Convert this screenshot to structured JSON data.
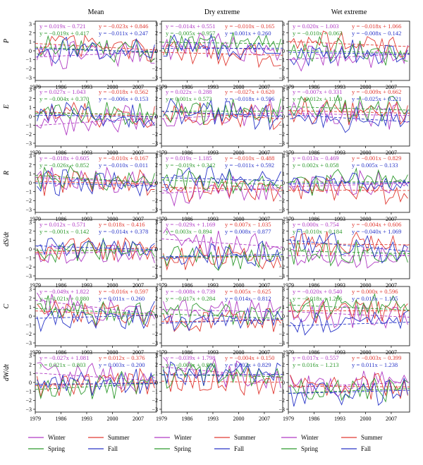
{
  "colors": {
    "Winter": "#b13bc4",
    "Summer": "#e03a33",
    "Spring": "#2f9a2f",
    "Fall": "#2a36c8"
  },
  "columns": [
    "Mean",
    "Dry extreme",
    "Wet extreme"
  ],
  "rows": [
    "P",
    "E",
    "R",
    "dS/dt",
    "C",
    "dW/dt"
  ],
  "x_ticks": [
    "1979",
    "1986",
    "1993",
    "2000",
    "2007"
  ],
  "y_ticks": [
    "3",
    "2",
    "1",
    "0",
    "−1",
    "−2",
    "−3"
  ],
  "legend": [
    "Winter",
    "Summer",
    "Spring",
    "Fall"
  ],
  "chart_data": {
    "type": "line",
    "layout": "6 rows x 3 columns grid of time-series panels",
    "x_range": [
      1979,
      2012
    ],
    "ylim": [
      -3,
      3
    ],
    "series_names": [
      "Winter",
      "Summer",
      "Spring",
      "Fall"
    ],
    "panels": [
      {
        "row": "P",
        "col": "Mean",
        "eq": [
          {
            "series": "Winter",
            "text": "y = 0.019x − 0.721",
            "slope": 0.019,
            "intercept": -0.721
          },
          {
            "series": "Summer",
            "text": "y = −0.023x + 0.846",
            "slope": -0.023,
            "intercept": 0.846
          },
          {
            "series": "Spring",
            "text": "y = −0.019x + 0.417",
            "slope": -0.019,
            "intercept": 0.417
          },
          {
            "series": "Fall",
            "text": "y = −0.011x + 0.247",
            "slope": -0.011,
            "intercept": 0.247
          }
        ]
      },
      {
        "row": "P",
        "col": "Dry extreme",
        "eq": [
          {
            "series": "Winter",
            "text": "y = −0.014x + 0.551",
            "slope": -0.014,
            "intercept": 0.551
          },
          {
            "series": "Summer",
            "text": "y = −0.010x − 0.165",
            "slope": -0.01,
            "intercept": -0.165
          },
          {
            "series": "Spring",
            "text": "y = −0.005x + 0.957",
            "slope": -0.005,
            "intercept": 0.957
          },
          {
            "series": "Fall",
            "text": "y = 0.001x + 0.260",
            "slope": 0.001,
            "intercept": 0.26
          }
        ]
      },
      {
        "row": "P",
        "col": "Wet extreme",
        "eq": [
          {
            "series": "Winter",
            "text": "y = 0.020x − 1.003",
            "slope": 0.02,
            "intercept": -1.003
          },
          {
            "series": "Summer",
            "text": "y = −0.018x + 1.066",
            "slope": -0.018,
            "intercept": 1.066
          },
          {
            "series": "Spring",
            "text": "y = −0.010x + 0.063",
            "slope": -0.01,
            "intercept": 0.063
          },
          {
            "series": "Fall",
            "text": "y = −0.008x − 0.142",
            "slope": -0.008,
            "intercept": -0.142
          }
        ]
      },
      {
        "row": "E",
        "col": "Mean",
        "eq": [
          {
            "series": "Winter",
            "text": "y = 0.027x − 1.043",
            "slope": 0.027,
            "intercept": -1.043
          },
          {
            "series": "Summer",
            "text": "y = −0.018x + 0.562",
            "slope": -0.018,
            "intercept": 0.562
          },
          {
            "series": "Spring",
            "text": "y = −0.004x + 0.370",
            "slope": -0.004,
            "intercept": 0.37
          },
          {
            "series": "Fall",
            "text": "y = −0.006x + 0.153",
            "slope": -0.006,
            "intercept": 0.153
          }
        ]
      },
      {
        "row": "E",
        "col": "Dry extreme",
        "eq": [
          {
            "series": "Winter",
            "text": "y = 0.022x − 0.288",
            "slope": 0.022,
            "intercept": -0.288
          },
          {
            "series": "Summer",
            "text": "y = −0.027x + 0.620",
            "slope": -0.027,
            "intercept": 0.62
          },
          {
            "series": "Spring",
            "text": "y = 0.001x + 0.573",
            "slope": 0.001,
            "intercept": 0.573
          },
          {
            "series": "Fall",
            "text": "y = −0.018x + 0.596",
            "slope": -0.018,
            "intercept": 0.596
          }
        ]
      },
      {
        "row": "E",
        "col": "Wet extreme",
        "eq": [
          {
            "series": "Winter",
            "text": "y = −0.007x + 0.331",
            "slope": -0.007,
            "intercept": 0.331
          },
          {
            "series": "Summer",
            "text": "y = −0.009x + 0.662",
            "slope": -0.009,
            "intercept": 0.662
          },
          {
            "series": "Spring",
            "text": "y = −0.012x + 1.100",
            "slope": -0.012,
            "intercept": 1.1
          },
          {
            "series": "Fall",
            "text": "y = −0.025x + 0.221",
            "slope": -0.025,
            "intercept": 0.221
          }
        ]
      },
      {
        "row": "R",
        "col": "Mean",
        "eq": [
          {
            "series": "Winter",
            "text": "y = −0.018x + 0.605",
            "slope": -0.018,
            "intercept": 0.605
          },
          {
            "series": "Summer",
            "text": "y = −0.010x + 0.167",
            "slope": -0.01,
            "intercept": 0.167
          },
          {
            "series": "Spring",
            "text": "y = −0.026x + 0.852",
            "slope": -0.026,
            "intercept": 0.852
          },
          {
            "series": "Fall",
            "text": "y = −0.010x − 0.011",
            "slope": -0.01,
            "intercept": -0.011
          }
        ]
      },
      {
        "row": "R",
        "col": "Dry extreme",
        "eq": [
          {
            "series": "Winter",
            "text": "y = 0.019x − 1.185",
            "slope": 0.019,
            "intercept": -1.185
          },
          {
            "series": "Summer",
            "text": "y = −0.010x − 0.488",
            "slope": -0.01,
            "intercept": -0.488
          },
          {
            "series": "Spring",
            "text": "y = −0.019x + 0.342",
            "slope": -0.019,
            "intercept": 0.342
          },
          {
            "series": "Fall",
            "text": "y = −0.011x + 0.592",
            "slope": -0.011,
            "intercept": 0.592
          }
        ]
      },
      {
        "row": "R",
        "col": "Wet extreme",
        "eq": [
          {
            "series": "Winter",
            "text": "y = 0.013x − 0.469",
            "slope": 0.013,
            "intercept": -0.469
          },
          {
            "series": "Summer",
            "text": "y = −0.001x − 0.829",
            "slope": -0.001,
            "intercept": -0.829
          },
          {
            "series": "Spring",
            "text": "y = 0.002x + 0.058",
            "slope": 0.002,
            "intercept": 0.058
          },
          {
            "series": "Fall",
            "text": "y = 0.005x − 0.133",
            "slope": 0.005,
            "intercept": -0.133
          }
        ]
      },
      {
        "row": "dS/dt",
        "col": "Mean",
        "eq": [
          {
            "series": "Winter",
            "text": "y = 0.012x − 0.571",
            "slope": 0.012,
            "intercept": -0.571
          },
          {
            "series": "Summer",
            "text": "y = 0.018x − 0.416",
            "slope": 0.018,
            "intercept": -0.416
          },
          {
            "series": "Spring",
            "text": "y = −0.001x − 0.142",
            "slope": -0.001,
            "intercept": -0.142
          },
          {
            "series": "Fall",
            "text": "y = −0.014x + 0.378",
            "slope": -0.014,
            "intercept": 0.378
          }
        ]
      },
      {
        "row": "dS/dt",
        "col": "Dry extreme",
        "eq": [
          {
            "series": "Winter",
            "text": "y = −0.029x + 1.169",
            "slope": -0.029,
            "intercept": 1.169
          },
          {
            "series": "Summer",
            "text": "y = 0.007x − 1.035",
            "slope": 0.007,
            "intercept": -1.035
          },
          {
            "series": "Spring",
            "text": "y = 0.003x − 0.894",
            "slope": 0.003,
            "intercept": -0.894
          },
          {
            "series": "Fall",
            "text": "y = 0.008x − 0.877",
            "slope": 0.008,
            "intercept": -0.877
          }
        ]
      },
      {
        "row": "dS/dt",
        "col": "Wet extreme",
        "eq": [
          {
            "series": "Winter",
            "text": "y = 0.000x − 0.754",
            "slope": 0.0,
            "intercept": -0.754
          },
          {
            "series": "Summer",
            "text": "y = −0.004x + 0.606",
            "slope": -0.004,
            "intercept": 0.606
          },
          {
            "series": "Spring",
            "text": "y = −0.010x − 0.184",
            "slope": -0.01,
            "intercept": -0.184
          },
          {
            "series": "Fall",
            "text": "y = −0.040x + 1.069",
            "slope": -0.04,
            "intercept": 1.069
          }
        ]
      },
      {
        "row": "C",
        "col": "Mean",
        "eq": [
          {
            "series": "Winter",
            "text": "y = −0.049x + 1.822",
            "slope": -0.049,
            "intercept": 1.822
          },
          {
            "series": "Summer",
            "text": "y = −0.016x + 0.597",
            "slope": -0.016,
            "intercept": 0.597
          },
          {
            "series": "Spring",
            "text": "y = −0.021x + 0.880",
            "slope": -0.021,
            "intercept": 0.88
          },
          {
            "series": "Fall",
            "text": "y = 0.011x − 0.260",
            "slope": 0.011,
            "intercept": -0.26
          }
        ]
      },
      {
        "row": "C",
        "col": "Dry extreme",
        "eq": [
          {
            "series": "Winter",
            "text": "y = −0.008x + 0.739",
            "slope": -0.008,
            "intercept": 0.739
          },
          {
            "series": "Summer",
            "text": "y = 0.005x − 0.625",
            "slope": 0.005,
            "intercept": -0.625
          },
          {
            "series": "Spring",
            "text": "y = −0.017x + 0.284",
            "slope": -0.017,
            "intercept": 0.284
          },
          {
            "series": "Fall",
            "text": "y = 0.014x − 0.812",
            "slope": 0.014,
            "intercept": -0.812
          }
        ]
      },
      {
        "row": "C",
        "col": "Wet extreme",
        "eq": [
          {
            "series": "Winter",
            "text": "y = −0.020x + 0.540",
            "slope": -0.02,
            "intercept": 0.54
          },
          {
            "series": "Summer",
            "text": "y = 0.000x + 0.596",
            "slope": 0.0,
            "intercept": 0.596
          },
          {
            "series": "Spring",
            "text": "y = −0.018x + 1.266",
            "slope": -0.018,
            "intercept": 1.266
          },
          {
            "series": "Fall",
            "text": "y = 0.013x − 1.105",
            "slope": 0.013,
            "intercept": -1.105
          }
        ]
      },
      {
        "row": "dW/dt",
        "col": "Mean",
        "eq": [
          {
            "series": "Winter",
            "text": "y = −0.027x + 1.081",
            "slope": -0.027,
            "intercept": 1.081
          },
          {
            "series": "Summer",
            "text": "y = 0.012x − 0.376",
            "slope": 0.012,
            "intercept": -0.376
          },
          {
            "series": "Spring",
            "text": "y = 0.021x − 0.803",
            "slope": 0.021,
            "intercept": -0.803
          },
          {
            "series": "Fall",
            "text": "y = 0.003x − 0.200",
            "slope": 0.003,
            "intercept": -0.2
          }
        ]
      },
      {
        "row": "dW/dt",
        "col": "Dry extreme",
        "eq": [
          {
            "series": "Winter",
            "text": "y = −0.039x + 1.798",
            "slope": -0.039,
            "intercept": 1.798
          },
          {
            "series": "Summer",
            "text": "y = −0.004x + 0.150",
            "slope": -0.004,
            "intercept": 0.15
          },
          {
            "series": "Spring",
            "text": "y = −0.008x + 0.900",
            "slope": -0.008,
            "intercept": 0.9
          },
          {
            "series": "Fall",
            "text": "y = 0.002x + 0.829",
            "slope": 0.002,
            "intercept": 0.829
          }
        ]
      },
      {
        "row": "dW/dt",
        "col": "Wet extreme",
        "eq": [
          {
            "series": "Winter",
            "text": "y = 0.017x − 0.557",
            "slope": 0.017,
            "intercept": -0.557
          },
          {
            "series": "Summer",
            "text": "y = −0.003x − 0.399",
            "slope": -0.003,
            "intercept": -0.399
          },
          {
            "series": "Spring",
            "text": "y = 0.016x − 1.213",
            "slope": 0.016,
            "intercept": -1.213
          },
          {
            "series": "Fall",
            "text": "y = 0.011x − 1.238",
            "slope": 0.011,
            "intercept": -1.238
          }
        ]
      }
    ]
  }
}
